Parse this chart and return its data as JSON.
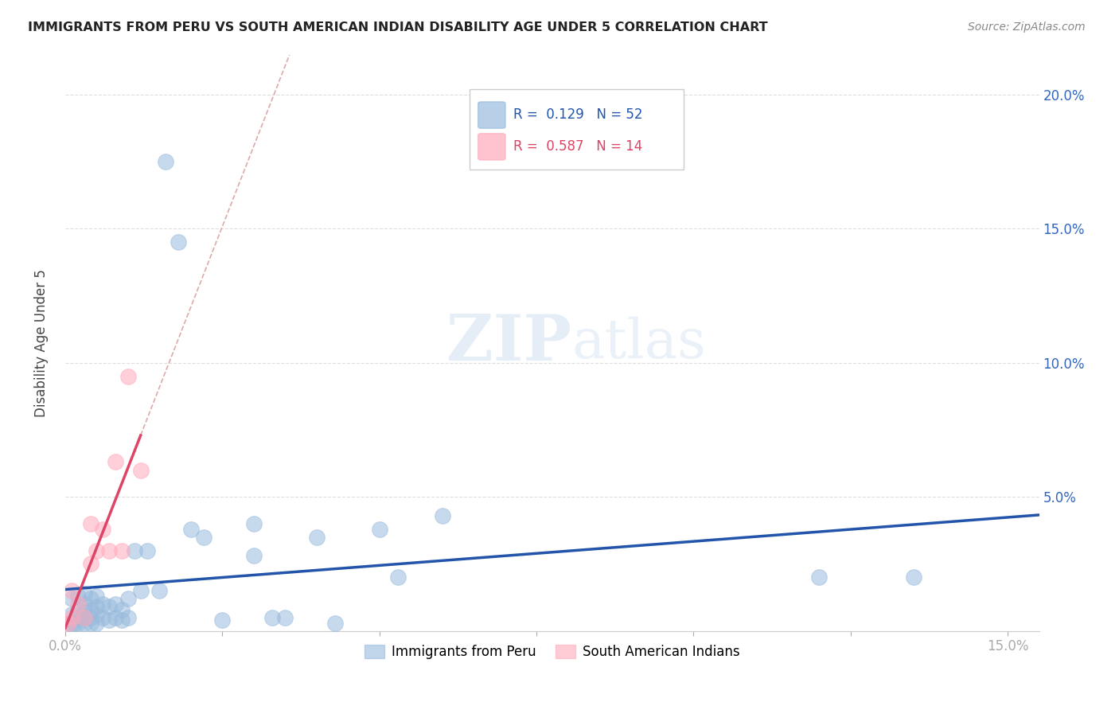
{
  "title": "IMMIGRANTS FROM PERU VS SOUTH AMERICAN INDIAN DISABILITY AGE UNDER 5 CORRELATION CHART",
  "source": "Source: ZipAtlas.com",
  "ylabel": "Disability Age Under 5",
  "xlim": [
    0.0,
    0.155
  ],
  "ylim": [
    0.0,
    0.215
  ],
  "xticks": [
    0.0,
    0.025,
    0.05,
    0.075,
    0.1,
    0.125,
    0.15
  ],
  "xtick_labels": [
    "0.0%",
    "",
    "",
    "",
    "",
    "",
    "15.0%"
  ],
  "yticks": [
    0.0,
    0.05,
    0.1,
    0.15,
    0.2
  ],
  "ytick_labels_right": [
    "",
    "5.0%",
    "10.0%",
    "15.0%",
    "20.0%"
  ],
  "blue_color": "#99BBDD",
  "blue_edge": "#88AACCCC",
  "pink_color": "#FFAABB",
  "pink_edge": "#EE889988",
  "trend_blue": "#2255AA",
  "trend_pink": "#DD4466",
  "diag_color": "#DDAAAA",
  "watermark_color": "#CCDDEF",
  "grid_color": "#DDDDDD",
  "legend_box_color": "#EEEEEE",
  "blue_scatter_x": [
    0.0005,
    0.001,
    0.001,
    0.001,
    0.0015,
    0.002,
    0.002,
    0.002,
    0.002,
    0.003,
    0.003,
    0.003,
    0.003,
    0.003,
    0.004,
    0.004,
    0.004,
    0.004,
    0.005,
    0.005,
    0.005,
    0.005,
    0.006,
    0.006,
    0.007,
    0.007,
    0.008,
    0.008,
    0.009,
    0.009,
    0.01,
    0.01,
    0.011,
    0.012,
    0.013,
    0.015,
    0.016,
    0.018,
    0.02,
    0.022,
    0.025,
    0.03,
    0.03,
    0.033,
    0.035,
    0.04,
    0.043,
    0.05,
    0.053,
    0.06,
    0.12,
    0.135
  ],
  "blue_scatter_y": [
    0.003,
    0.003,
    0.006,
    0.012,
    0.003,
    0.003,
    0.005,
    0.008,
    0.013,
    0.003,
    0.005,
    0.007,
    0.01,
    0.014,
    0.003,
    0.005,
    0.008,
    0.012,
    0.003,
    0.006,
    0.009,
    0.013,
    0.005,
    0.01,
    0.004,
    0.009,
    0.005,
    0.01,
    0.004,
    0.008,
    0.005,
    0.012,
    0.03,
    0.015,
    0.03,
    0.015,
    0.175,
    0.145,
    0.038,
    0.035,
    0.004,
    0.028,
    0.04,
    0.005,
    0.005,
    0.035,
    0.003,
    0.038,
    0.02,
    0.043,
    0.02,
    0.02
  ],
  "pink_scatter_x": [
    0.0005,
    0.001,
    0.001,
    0.002,
    0.003,
    0.004,
    0.004,
    0.005,
    0.006,
    0.007,
    0.008,
    0.009,
    0.01,
    0.012
  ],
  "pink_scatter_y": [
    0.003,
    0.005,
    0.015,
    0.01,
    0.005,
    0.025,
    0.04,
    0.03,
    0.038,
    0.03,
    0.063,
    0.03,
    0.095,
    0.06
  ]
}
